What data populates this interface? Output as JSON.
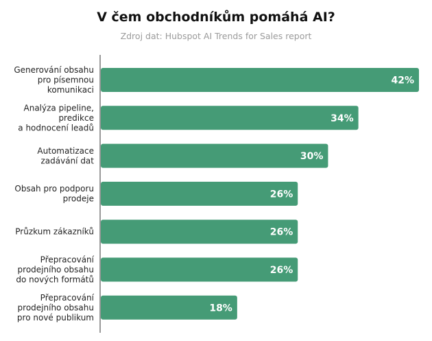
{
  "chart_data": {
    "type": "bar",
    "orientation": "horizontal",
    "title": "V čem obchodníkům pomáhá AI?",
    "subtitle": "Zdroj dat: Hubspot AI Trends for Sales report",
    "categories": [
      [
        "Generování obsahu",
        "pro písemnou",
        "komunikaci"
      ],
      [
        "Analýza pipeline,",
        "predikce",
        "a hodnocení leadů"
      ],
      [
        "Automatizace",
        "zadávání dat"
      ],
      [
        "Obsah pro podporu",
        "prodeje"
      ],
      [
        "Průzkum zákazníků"
      ],
      [
        "Přepracování",
        "prodejního obsahu",
        "do nových formátů"
      ],
      [
        "Přepracování",
        "prodejního obsahu",
        "pro nové publikum"
      ]
    ],
    "values": [
      42,
      34,
      30,
      26,
      26,
      26,
      18
    ],
    "value_labels": [
      "42%",
      "34%",
      "30%",
      "26%",
      "26%",
      "26%",
      "18%"
    ],
    "unit": "%",
    "xlim": [
      0,
      42
    ],
    "bar_color": "#459b76",
    "grid": false,
    "legend": "none"
  }
}
